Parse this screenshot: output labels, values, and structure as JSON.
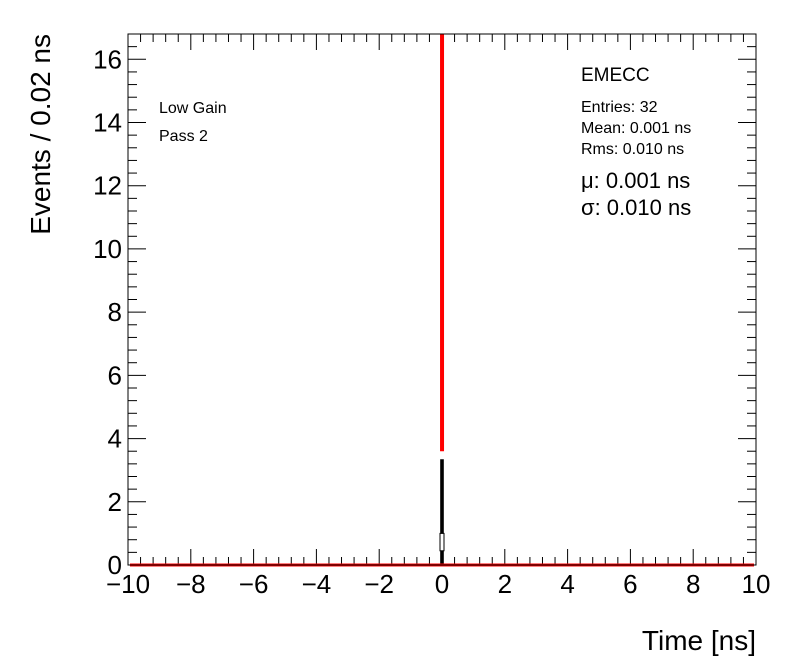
{
  "chart_data": {
    "type": "histogram",
    "xlabel": "Time [ns]",
    "ylabel": "Events / 0.02 ns",
    "xlim": [
      -10,
      10
    ],
    "ylim": [
      0,
      16.8
    ],
    "x_ticks": [
      -10,
      -8,
      -6,
      -4,
      -2,
      0,
      2,
      4,
      6,
      8,
      10
    ],
    "x_tick_labels": [
      "−10",
      "−8",
      "−6",
      "−4",
      "−2",
      "0",
      "2",
      "4",
      "6",
      "8",
      "10"
    ],
    "y_ticks": [
      0,
      2,
      4,
      6,
      8,
      10,
      12,
      14,
      16
    ],
    "y_tick_labels": [
      "0",
      "2",
      "4",
      "6",
      "8",
      "10",
      "12",
      "14",
      "16"
    ],
    "bin_width": 0.02,
    "histogram": {
      "bins": [
        {
          "x": 0.0,
          "value": 3.3
        }
      ],
      "color": "#000000"
    },
    "fit": {
      "color": "#ff0000",
      "mu": 0.001,
      "sigma": 0.01,
      "peak_exceeds_ylim": true
    },
    "annotations": {
      "left": [
        "Low Gain",
        "Pass 2"
      ],
      "title": "EMECC",
      "stats": [
        "Entries: 32",
        "Mean: 0.001 ns",
        "Rms: 0.010 ns"
      ],
      "fit_params": [
        "μ: 0.001 ns",
        "σ: 0.010 ns"
      ]
    },
    "grid": false
  }
}
